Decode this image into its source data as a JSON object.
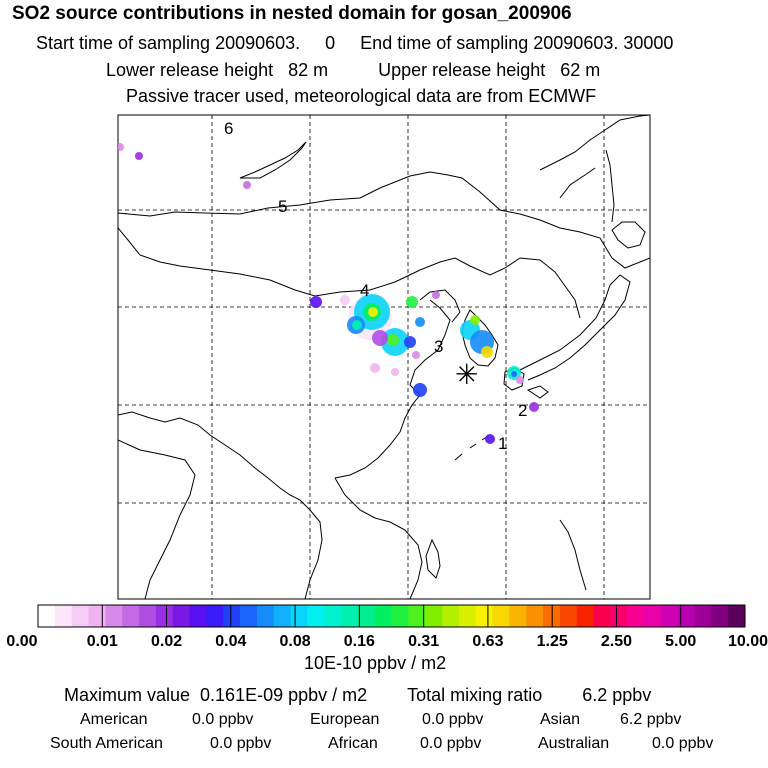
{
  "header": {
    "title": "SO2 source contributions in nested domain for gosan_200906",
    "line1": "Start time of sampling 20090603.     0     End time of sampling 20090603. 30000",
    "line2": "Lower release height   82 m          Upper release height   62 m",
    "line3": "Passive tracer used, meteorological data are from ECMWF"
  },
  "chart_data": {
    "type": "heatmap",
    "title": "SO2 source contributions in nested domain for gosan_200906",
    "region_labels": [
      "1",
      "2",
      "3",
      "4",
      "5",
      "6"
    ],
    "receptor_symbol": "✳",
    "colorbar": {
      "tick_labels": [
        "0.00",
        "0.01",
        "0.02",
        "0.04",
        "0.08",
        "0.16",
        "0.31",
        "0.63",
        "1.25",
        "2.50",
        "5.00",
        "10.00"
      ],
      "unit": "10E-10 ppbv / m2",
      "colors": [
        "#ffffff",
        "#fbe6fb",
        "#f5ccf5",
        "#efb3ef",
        "#d98ae8",
        "#c46ae6",
        "#b04ee4",
        "#9a2ee6",
        "#7a18e6",
        "#5a10f0",
        "#3a1cf8",
        "#2040fa",
        "#1a66fa",
        "#158cfa",
        "#10b0fa",
        "#0ad4fa",
        "#00f0f0",
        "#00f0d0",
        "#00f0b0",
        "#00f090",
        "#00f060",
        "#20f040",
        "#50f020",
        "#80f000",
        "#b0f000",
        "#d8f000",
        "#f8f000",
        "#f8d800",
        "#f8b400",
        "#f89000",
        "#f86c00",
        "#f84800",
        "#f82400",
        "#f8004c",
        "#f80070",
        "#f80094",
        "#e800a8",
        "#d000b4",
        "#b800b0",
        "#9c0098",
        "#800080",
        "#5a005a"
      ]
    },
    "max_value": "0.161E-09 ppbv / m2",
    "total_mixing_ratio": "6.2 ppbv",
    "contributions": [
      {
        "region": "American",
        "value": "0.0 ppbv"
      },
      {
        "region": "European",
        "value": "0.0 ppbv"
      },
      {
        "region": "Asian",
        "value": "6.2 ppbv"
      },
      {
        "region": "South American",
        "value": "0.0 ppbv"
      },
      {
        "region": "African",
        "value": "0.0 ppbv"
      },
      {
        "region": "Australian",
        "value": "0.0 ppbv"
      }
    ]
  },
  "footer": {
    "max_label": "Maximum value  0.161E-09 ppbv / m2",
    "total_label": "Total mixing ratio",
    "total_value": "6.2 ppbv"
  }
}
